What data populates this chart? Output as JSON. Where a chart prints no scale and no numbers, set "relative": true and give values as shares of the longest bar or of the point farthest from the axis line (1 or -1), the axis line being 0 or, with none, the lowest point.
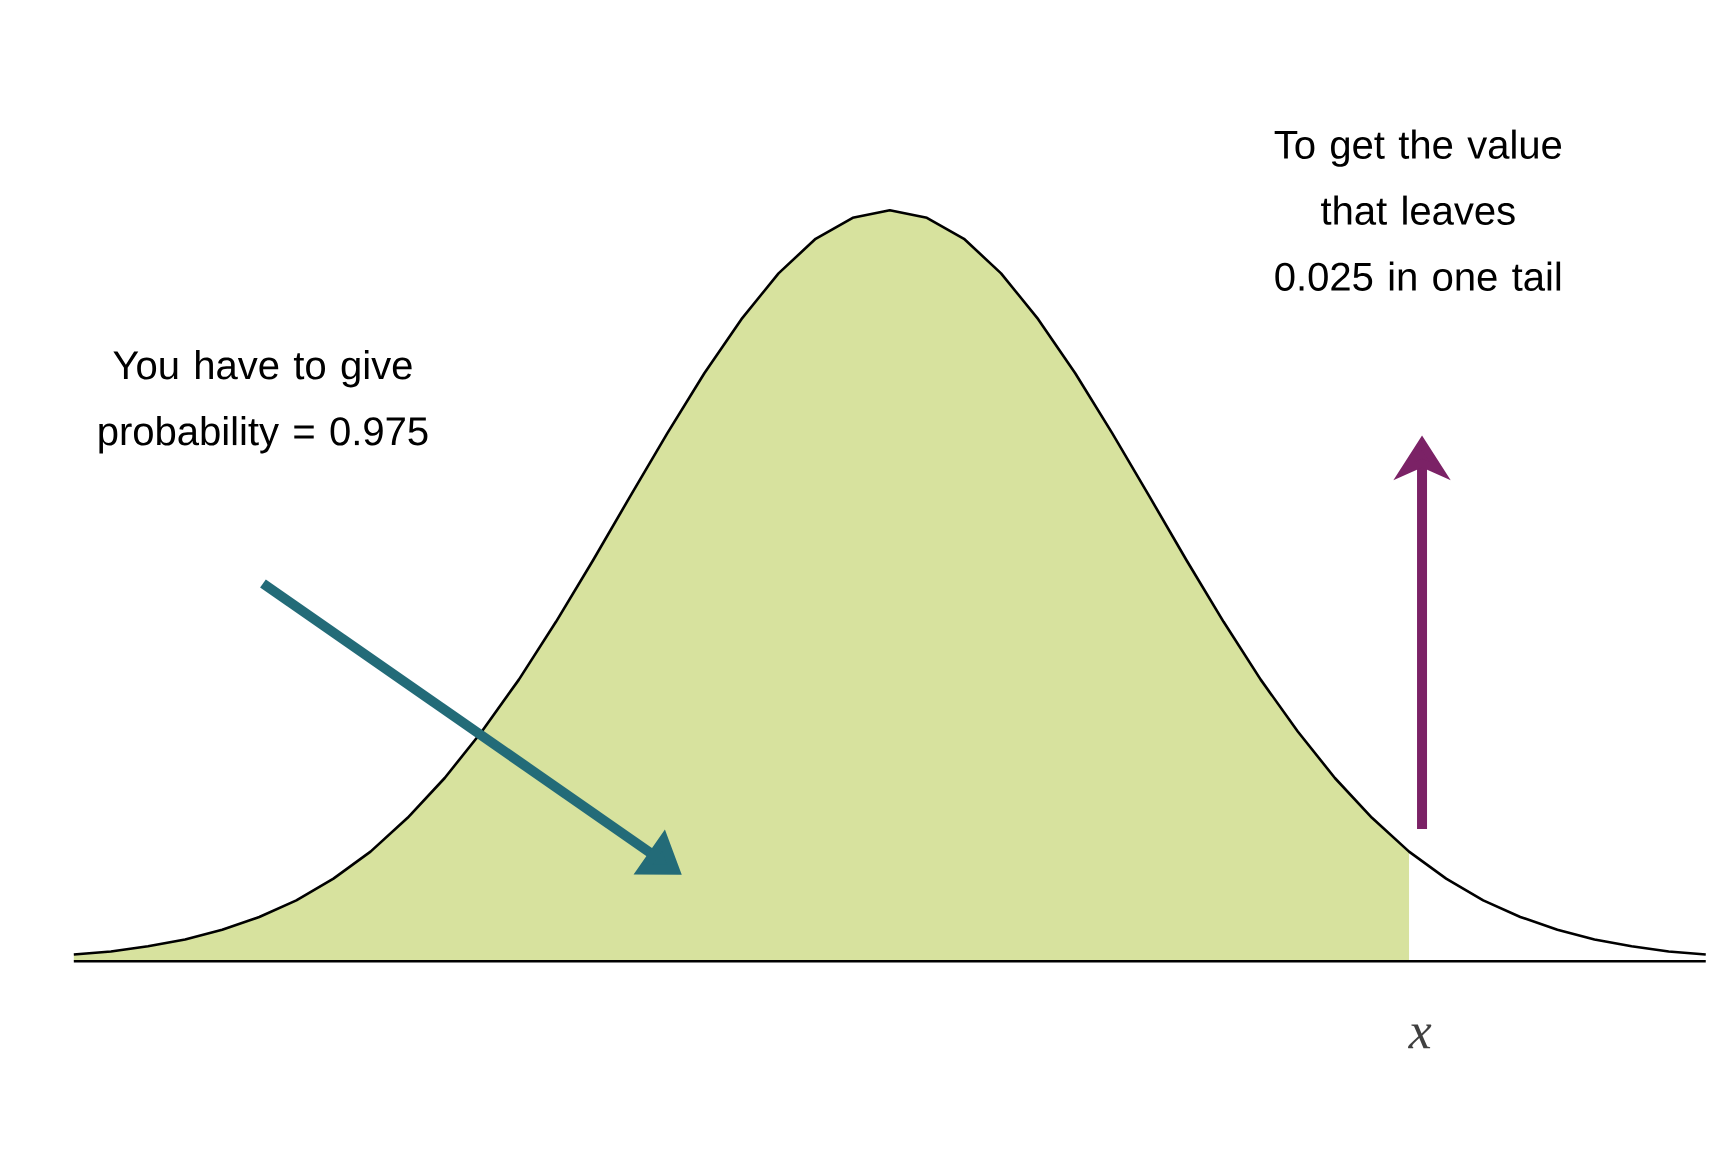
{
  "chart_data": {
    "type": "line",
    "relative": true,
    "categories": [
      null,
      null,
      null,
      null,
      null,
      null,
      null,
      null,
      null,
      null,
      null,
      null,
      null,
      null,
      null,
      null,
      null,
      null,
      null,
      null,
      null,
      null,
      null,
      null,
      null,
      null,
      null,
      null,
      null,
      null,
      null,
      null,
      null,
      null,
      null,
      null,
      null,
      null,
      null,
      null,
      null,
      null,
      null,
      null,
      null
    ],
    "series": [
      {
        "type": "area",
        "color": "#d7e29e",
        "values": [
          0.009,
          0.013,
          0.02,
          0.029,
          0.042,
          0.059,
          0.081,
          0.11,
          0.146,
          0.191,
          0.244,
          0.306,
          0.375,
          0.452,
          0.534,
          0.619,
          0.703,
          0.783,
          0.855,
          0.916,
          0.962,
          0.99,
          1,
          0.99,
          0.962,
          0.916,
          0.855,
          0.783,
          0.703,
          0.619,
          0.534,
          0.452,
          0.375,
          0.306,
          0.244,
          0.191,
          0.146,
          null,
          null,
          null,
          null,
          null,
          null,
          null,
          null
        ]
      },
      {
        "color": "#000000",
        "values": [
          0.009,
          0.013,
          0.02,
          0.029,
          0.042,
          0.059,
          0.081,
          0.11,
          0.146,
          0.191,
          0.244,
          0.306,
          0.375,
          0.452,
          0.534,
          0.619,
          0.703,
          0.783,
          0.855,
          0.916,
          0.962,
          0.99,
          1,
          0.99,
          0.962,
          0.916,
          0.855,
          0.783,
          0.703,
          0.619,
          0.534,
          0.452,
          0.375,
          0.306,
          0.244,
          0.191,
          0.146,
          0.11,
          0.081,
          0.059,
          0.042,
          0.029,
          0.02,
          0.013,
          0.009
        ]
      }
    ],
    "annotations": [
      "You have to give probability = 0.975",
      "To get the value that leaves 0.025 in one tail",
      "x"
    ]
  }
}
